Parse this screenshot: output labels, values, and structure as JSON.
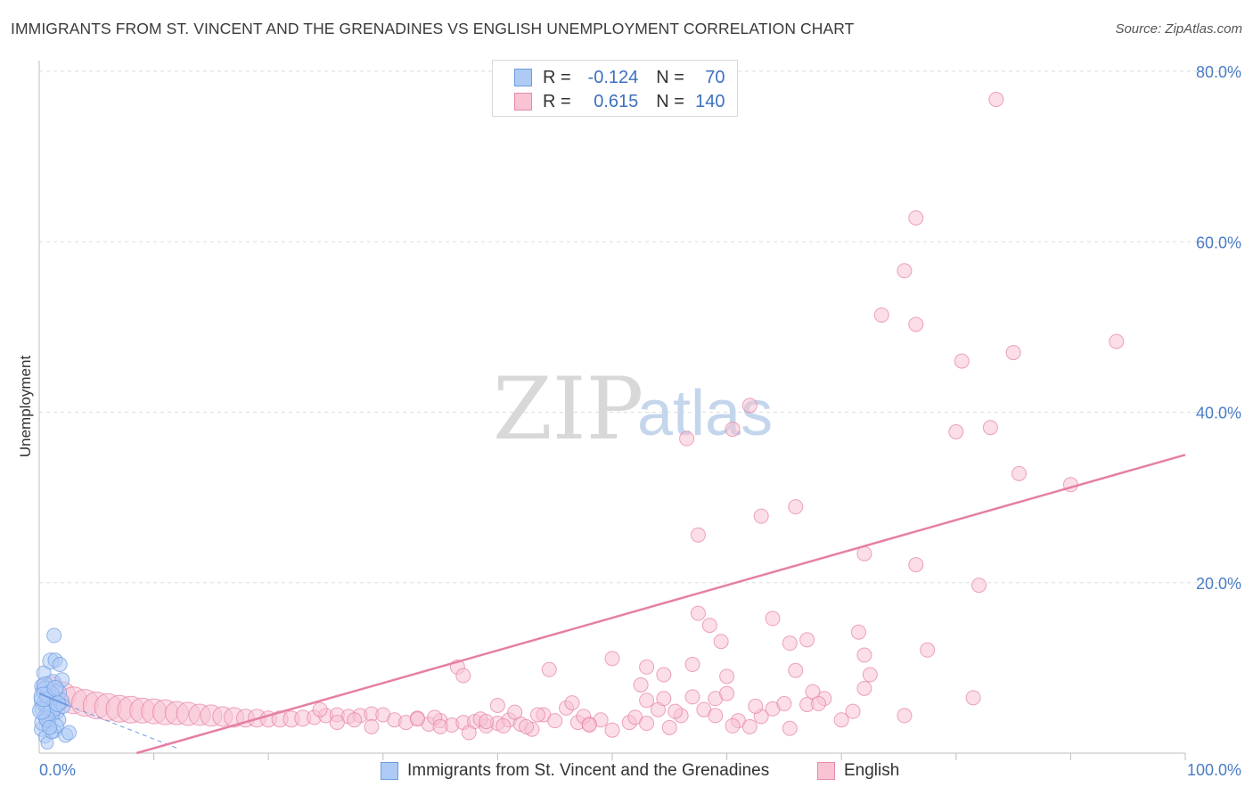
{
  "title": "IMMIGRANTS FROM ST. VINCENT AND THE GRENADINES VS ENGLISH UNEMPLOYMENT CORRELATION CHART",
  "source": "Source: ZipAtlas.com",
  "watermark": {
    "zip": "ZIP",
    "atlas": "atlas"
  },
  "legend": {
    "r_label": "R =",
    "n_label": "N =",
    "rows": [
      {
        "r": "-0.124",
        "n": "70",
        "fill": "#aecbf5",
        "stroke": "#6c9be0"
      },
      {
        "r": "0.615",
        "n": "140",
        "fill": "#f8c3d3",
        "stroke": "#e88aa9"
      }
    ]
  },
  "bottom_legend": [
    {
      "label": "Immigrants from St. Vincent and the Grenadines",
      "fill": "#aecbf5",
      "stroke": "#6c9be0"
    },
    {
      "label": "English",
      "fill": "#f8c3d3",
      "stroke": "#e88aa9"
    }
  ],
  "chart_data": {
    "type": "scatter",
    "title": "IMMIGRANTS FROM ST. VINCENT AND THE GRENADINES VS ENGLISH UNEMPLOYMENT CORRELATION CHART",
    "xlabel": "",
    "ylabel": "Unemployment",
    "xlim": [
      0,
      100
    ],
    "ylim": [
      0,
      80
    ],
    "x_tick_labels": [
      "0.0%",
      "100.0%"
    ],
    "y_ticks": [
      20,
      40,
      60,
      80
    ],
    "y_tick_labels": [
      "20.0%",
      "40.0%",
      "60.0%",
      "80.0%"
    ],
    "grid": true,
    "colors": {
      "blue": "#6c9be0",
      "blue_fill": "#aecbf5",
      "pink": "#e67fa3",
      "pink_fill": "#f8c3d3"
    },
    "series": [
      {
        "name": "Immigrants from St. Vincent and the Grenadines",
        "color": "#6c9be0",
        "trend": {
          "x": [
            0,
            12
          ],
          "y": [
            7.0,
            0.6
          ]
        },
        "points": [
          [
            0.3,
            7.8,
            9
          ],
          [
            0.5,
            6.2,
            12
          ],
          [
            0.4,
            5.1,
            10
          ],
          [
            0.6,
            4.3,
            9
          ],
          [
            0.8,
            3.5,
            8
          ],
          [
            0.2,
            2.8,
            8
          ],
          [
            0.5,
            1.9,
            7
          ],
          [
            0.7,
            1.2,
            7
          ],
          [
            0.4,
            9.4,
            8
          ],
          [
            1.0,
            10.8,
            9
          ],
          [
            1.4,
            10.9,
            8
          ],
          [
            1.3,
            13.8,
            8
          ],
          [
            1.8,
            10.4,
            8
          ],
          [
            1.2,
            8.3,
            9
          ],
          [
            1.6,
            7.1,
            10
          ],
          [
            2.0,
            8.6,
            8
          ],
          [
            1.1,
            6.4,
            11
          ],
          [
            0.9,
            5.6,
            10
          ],
          [
            1.5,
            4.9,
            9
          ],
          [
            1.7,
            3.9,
            8
          ],
          [
            1.3,
            2.6,
            8
          ],
          [
            2.3,
            2.1,
            8
          ],
          [
            2.6,
            2.4,
            8
          ],
          [
            0.6,
            7.3,
            11
          ],
          [
            0.8,
            5.9,
            12
          ],
          [
            1.0,
            4.7,
            10
          ],
          [
            0.3,
            3.6,
            9
          ],
          [
            0.9,
            6.8,
            11
          ],
          [
            1.2,
            5.3,
            10
          ],
          [
            1.9,
            6.1,
            9
          ],
          [
            0.5,
            8.0,
            9
          ],
          [
            0.7,
            4.0,
            9
          ],
          [
            1.5,
            3.2,
            8
          ],
          [
            2.1,
            5.5,
            8
          ],
          [
            0.2,
            5.0,
            10
          ],
          [
            1.1,
            2.4,
            7
          ],
          [
            0.4,
            6.6,
            11
          ],
          [
            1.6,
            5.8,
            9
          ],
          [
            0.9,
            3.0,
            8
          ],
          [
            1.4,
            7.6,
            9
          ]
        ]
      },
      {
        "name": "English",
        "color": "#e67fa3",
        "trend": {
          "x": [
            8.5,
            100
          ],
          "y": [
            0,
            35.0
          ]
        },
        "points": [
          [
            1.0,
            7.5,
            14
          ],
          [
            2.0,
            6.8,
            15
          ],
          [
            3.0,
            6.2,
            15
          ],
          [
            4.0,
            5.9,
            15
          ],
          [
            5.0,
            5.6,
            15
          ],
          [
            6.0,
            5.4,
            15
          ],
          [
            7.0,
            5.2,
            15
          ],
          [
            8.0,
            5.1,
            15
          ],
          [
            9.0,
            5.0,
            14
          ],
          [
            10.0,
            4.9,
            14
          ],
          [
            11.0,
            4.8,
            14
          ],
          [
            12.0,
            4.7,
            13
          ],
          [
            13.0,
            4.6,
            13
          ],
          [
            14.0,
            4.5,
            12
          ],
          [
            15.0,
            4.4,
            12
          ],
          [
            16.0,
            4.3,
            11
          ],
          [
            17.0,
            4.2,
            11
          ],
          [
            18.0,
            4.1,
            10
          ],
          [
            19.0,
            4.1,
            10
          ],
          [
            20.0,
            4.0,
            9
          ],
          [
            21.0,
            4.0,
            9
          ],
          [
            22.0,
            4.0,
            9
          ],
          [
            23.0,
            4.1,
            9
          ],
          [
            24.0,
            4.2,
            8
          ],
          [
            25.0,
            4.4,
            8
          ],
          [
            26.0,
            4.5,
            8
          ],
          [
            27.0,
            4.3,
            8
          ],
          [
            28.0,
            4.4,
            8
          ],
          [
            29.0,
            4.6,
            8
          ],
          [
            30.0,
            4.5,
            8
          ],
          [
            31.0,
            3.9,
            8
          ],
          [
            32.0,
            3.6,
            8
          ],
          [
            33.0,
            4.1,
            8
          ],
          [
            34.0,
            3.4,
            8
          ],
          [
            35.0,
            3.8,
            8
          ],
          [
            36.0,
            3.3,
            8
          ],
          [
            37.0,
            3.6,
            8
          ],
          [
            38.0,
            3.7,
            8
          ],
          [
            39.0,
            3.2,
            8
          ],
          [
            40.0,
            3.5,
            8
          ],
          [
            41.0,
            3.9,
            8
          ],
          [
            42.0,
            3.4,
            8
          ],
          [
            43.0,
            2.8,
            8
          ],
          [
            44.0,
            4.5,
            8
          ],
          [
            45.0,
            3.8,
            8
          ],
          [
            46.0,
            5.3,
            8
          ],
          [
            47.0,
            3.6,
            8
          ],
          [
            48.0,
            3.4,
            8
          ],
          [
            49.0,
            3.9,
            8
          ],
          [
            50.0,
            2.7,
            8
          ],
          [
            51.5,
            3.6,
            8
          ],
          [
            52.0,
            4.2,
            8
          ],
          [
            53.0,
            6.2,
            8
          ],
          [
            54.0,
            5.1,
            8
          ],
          [
            55.0,
            3.0,
            8
          ],
          [
            56.0,
            4.4,
            8
          ],
          [
            57.0,
            6.6,
            8
          ],
          [
            58.0,
            5.1,
            8
          ],
          [
            59.0,
            6.4,
            8
          ],
          [
            60.0,
            7.0,
            8
          ],
          [
            61.0,
            3.8,
            8
          ],
          [
            62.0,
            3.1,
            8
          ],
          [
            63.0,
            4.3,
            8
          ],
          [
            64.0,
            5.2,
            8
          ],
          [
            65.0,
            5.8,
            8
          ],
          [
            66.0,
            9.7,
            8
          ],
          [
            67.0,
            5.7,
            8
          ],
          [
            68.5,
            6.4,
            8
          ],
          [
            70.0,
            3.9,
            8
          ],
          [
            71.0,
            4.9,
            8
          ],
          [
            72.0,
            7.6,
            8
          ],
          [
            36.5,
            10.1,
            8
          ],
          [
            37.0,
            9.1,
            8
          ],
          [
            44.5,
            9.8,
            8
          ],
          [
            50.0,
            11.1,
            8
          ],
          [
            53.0,
            10.1,
            8
          ],
          [
            54.5,
            9.2,
            8
          ],
          [
            52.5,
            8.0,
            8
          ],
          [
            54.5,
            6.4,
            8
          ],
          [
            57.0,
            10.4,
            8
          ],
          [
            62.5,
            5.5,
            8
          ],
          [
            57.5,
            16.4,
            8
          ],
          [
            58.5,
            15.0,
            8
          ],
          [
            59.5,
            13.1,
            8
          ],
          [
            60.0,
            9.0,
            8
          ],
          [
            65.5,
            12.9,
            8
          ],
          [
            67.5,
            7.2,
            8
          ],
          [
            68.0,
            5.8,
            8
          ],
          [
            72.5,
            9.2,
            8
          ],
          [
            67.0,
            13.3,
            8
          ],
          [
            64.0,
            15.8,
            8
          ],
          [
            71.5,
            14.2,
            8
          ],
          [
            72.0,
            11.5,
            8
          ],
          [
            77.5,
            12.1,
            8
          ],
          [
            81.5,
            6.5,
            8
          ],
          [
            65.5,
            2.9,
            8
          ],
          [
            75.5,
            4.4,
            8
          ],
          [
            72.0,
            23.4,
            8
          ],
          [
            76.5,
            22.1,
            8
          ],
          [
            82.0,
            19.7,
            8
          ],
          [
            57.5,
            25.6,
            8
          ],
          [
            63.0,
            27.8,
            8
          ],
          [
            66.0,
            28.9,
            8
          ],
          [
            56.5,
            36.9,
            8
          ],
          [
            60.5,
            38.0,
            8
          ],
          [
            62.0,
            40.8,
            8
          ],
          [
            80.5,
            46.0,
            8
          ],
          [
            85.0,
            47.0,
            8
          ],
          [
            76.5,
            50.3,
            8
          ],
          [
            73.5,
            51.4,
            8
          ],
          [
            85.5,
            32.8,
            8
          ],
          [
            83.0,
            38.2,
            8
          ],
          [
            80.0,
            37.7,
            8
          ],
          [
            75.5,
            56.6,
            8
          ],
          [
            76.5,
            62.8,
            8
          ],
          [
            94.0,
            48.3,
            8
          ],
          [
            83.5,
            76.7,
            8
          ],
          [
            90.0,
            31.5,
            8
          ],
          [
            53.0,
            3.5,
            8
          ],
          [
            55.5,
            4.9,
            8
          ],
          [
            59.0,
            4.4,
            8
          ],
          [
            60.5,
            3.2,
            8
          ],
          [
            46.5,
            5.9,
            8
          ],
          [
            47.5,
            4.3,
            8
          ],
          [
            48.0,
            3.3,
            8
          ],
          [
            41.5,
            4.8,
            8
          ],
          [
            40.0,
            5.6,
            8
          ],
          [
            42.5,
            3.1,
            8
          ],
          [
            38.5,
            4.0,
            8
          ],
          [
            39.0,
            3.7,
            8
          ],
          [
            24.5,
            5.1,
            8
          ],
          [
            26.0,
            3.6,
            8
          ],
          [
            27.5,
            3.9,
            8
          ],
          [
            29.0,
            3.1,
            8
          ],
          [
            33.0,
            4.0,
            8
          ],
          [
            34.5,
            4.2,
            8
          ],
          [
            35.0,
            3.1,
            8
          ],
          [
            37.5,
            2.4,
            8
          ],
          [
            40.5,
            3.2,
            8
          ],
          [
            43.5,
            4.5,
            8
          ]
        ]
      }
    ]
  }
}
